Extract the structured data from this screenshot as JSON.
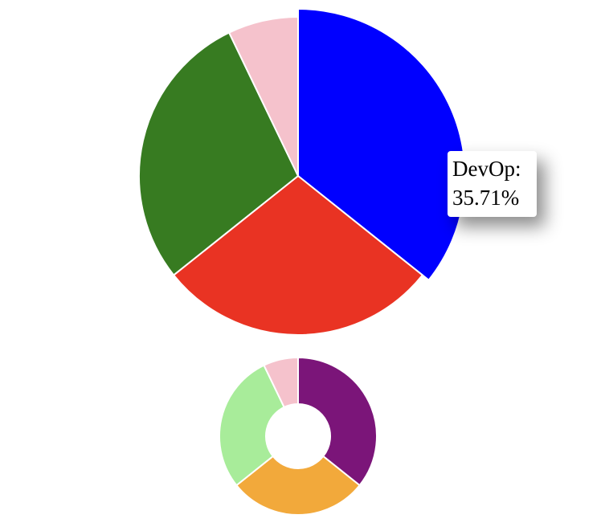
{
  "chart_data": [
    {
      "type": "pie",
      "categories": [
        "DevOp:",
        null,
        null,
        null
      ],
      "values": [
        35.71,
        28.57,
        28.57,
        7.14
      ],
      "value_labels": [
        "35.71%",
        null,
        null,
        null
      ],
      "colors": [
        "#0000ff",
        "#e93323",
        "#377b21",
        "#f5c2cc"
      ]
    },
    {
      "type": "donut",
      "categories": [
        null,
        null,
        null,
        null
      ],
      "values": [
        35.71,
        28.57,
        28.57,
        7.14
      ],
      "colors": [
        "#7b1579",
        "#f2a93b",
        "#a8ec9a",
        "#f5c2cc"
      ]
    }
  ]
}
